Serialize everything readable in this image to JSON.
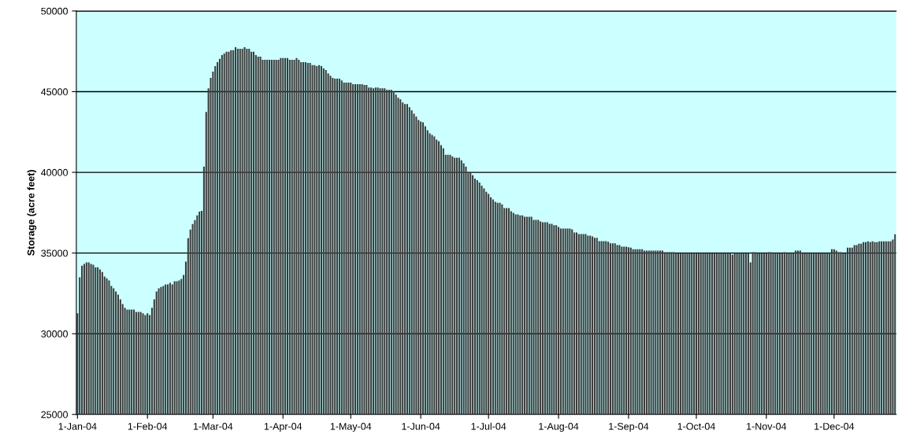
{
  "chart_data": {
    "type": "bar",
    "ylabel": "Storage (acre feet)",
    "color": "#3c3c3c",
    "ylim": [
      25000,
      50000
    ],
    "yticks": [
      25000,
      30000,
      35000,
      40000,
      45000,
      50000
    ],
    "grid": "y",
    "categories": [
      "1-Jan-04",
      null,
      null,
      null,
      null,
      null,
      null,
      null,
      null,
      null,
      null,
      null,
      null,
      null,
      null,
      null,
      null,
      null,
      null,
      null,
      null,
      null,
      null,
      null,
      null,
      null,
      null,
      null,
      null,
      null,
      null,
      "1-Feb-04",
      null,
      null,
      null,
      null,
      null,
      null,
      null,
      null,
      null,
      null,
      null,
      null,
      null,
      null,
      null,
      null,
      null,
      null,
      null,
      null,
      null,
      null,
      null,
      null,
      null,
      null,
      null,
      null,
      "1-Mar-04",
      null,
      null,
      null,
      null,
      null,
      null,
      null,
      null,
      null,
      null,
      null,
      null,
      null,
      null,
      null,
      null,
      null,
      null,
      null,
      null,
      null,
      null,
      null,
      null,
      null,
      null,
      null,
      null,
      null,
      null,
      "1-Apr-04",
      null,
      null,
      null,
      null,
      null,
      null,
      null,
      null,
      null,
      null,
      null,
      null,
      null,
      null,
      null,
      null,
      null,
      null,
      null,
      null,
      null,
      null,
      null,
      null,
      null,
      null,
      null,
      null,
      null,
      "1-May-04",
      null,
      null,
      null,
      null,
      null,
      null,
      null,
      null,
      null,
      null,
      null,
      null,
      null,
      null,
      null,
      null,
      null,
      null,
      null,
      null,
      null,
      null,
      null,
      null,
      null,
      null,
      null,
      null,
      null,
      null,
      "1-Jun-04",
      null,
      null,
      null,
      null,
      null,
      null,
      null,
      null,
      null,
      null,
      null,
      null,
      null,
      null,
      null,
      null,
      null,
      null,
      null,
      null,
      null,
      null,
      null,
      null,
      null,
      null,
      null,
      null,
      null,
      "1-Jul-04",
      null,
      null,
      null,
      null,
      null,
      null,
      null,
      null,
      null,
      null,
      null,
      null,
      null,
      null,
      null,
      null,
      null,
      null,
      null,
      null,
      null,
      null,
      null,
      null,
      null,
      null,
      null,
      null,
      null,
      null,
      "1-Aug-04",
      null,
      null,
      null,
      null,
      null,
      null,
      null,
      null,
      null,
      null,
      null,
      null,
      null,
      null,
      null,
      null,
      null,
      null,
      null,
      null,
      null,
      null,
      null,
      null,
      null,
      null,
      null,
      null,
      null,
      null,
      "1-Sep-04",
      null,
      null,
      null,
      null,
      null,
      null,
      null,
      null,
      null,
      null,
      null,
      null,
      null,
      null,
      null,
      null,
      null,
      null,
      null,
      null,
      null,
      null,
      null,
      null,
      null,
      null,
      null,
      null,
      null,
      "1-Oct-04",
      null,
      null,
      null,
      null,
      null,
      null,
      null,
      null,
      null,
      null,
      null,
      null,
      null,
      null,
      null,
      null,
      null,
      null,
      null,
      null,
      null,
      null,
      null,
      null,
      null,
      null,
      null,
      null,
      null,
      null,
      "1-Nov-04",
      null,
      null,
      null,
      null,
      null,
      null,
      null,
      null,
      null,
      null,
      null,
      null,
      null,
      null,
      null,
      null,
      null,
      null,
      null,
      null,
      null,
      null,
      null,
      null,
      null,
      null,
      null,
      null,
      null,
      "1-Dec-04",
      null,
      null,
      null,
      null,
      null,
      null,
      null,
      null,
      null,
      null,
      null,
      null,
      null,
      null,
      null,
      null,
      null,
      null,
      null,
      null,
      null,
      null,
      null,
      null,
      null,
      null,
      null
    ],
    "values": [
      31260,
      33500,
      34220,
      34320,
      34420,
      34420,
      34320,
      34270,
      34120,
      34120,
      33980,
      33830,
      33540,
      33440,
      33300,
      32960,
      32810,
      32620,
      32420,
      32130,
      31840,
      31600,
      31500,
      31500,
      31500,
      31500,
      31350,
      31350,
      31350,
      31260,
      31160,
      31260,
      31160,
      31600,
      32130,
      32620,
      32810,
      32900,
      32960,
      33060,
      33060,
      33150,
      33060,
      33250,
      33250,
      33300,
      33400,
      33640,
      34470,
      35920,
      36460,
      36800,
      37040,
      37330,
      37570,
      37620,
      40360,
      43740,
      45210,
      45850,
      46240,
      46590,
      46830,
      47030,
      47270,
      47370,
      47470,
      47470,
      47570,
      47570,
      47760,
      47660,
      47660,
      47660,
      47760,
      47660,
      47660,
      47470,
      47470,
      47270,
      47170,
      47170,
      46980,
      46980,
      46980,
      46980,
      46980,
      46980,
      46980,
      46980,
      47080,
      47080,
      47080,
      47080,
      46980,
      46980,
      46980,
      47080,
      46980,
      46830,
      46830,
      46830,
      46780,
      46780,
      46640,
      46640,
      46590,
      46640,
      46590,
      46440,
      46340,
      46140,
      45990,
      45850,
      45800,
      45800,
      45800,
      45700,
      45560,
      45560,
      45560,
      45560,
      45460,
      45460,
      45460,
      45460,
      45460,
      45410,
      45410,
      45260,
      45260,
      45210,
      45260,
      45260,
      45210,
      45210,
      45210,
      45110,
      45110,
      45110,
      45020,
      44820,
      44620,
      44530,
      44330,
      44230,
      44230,
      44040,
      43840,
      43640,
      43450,
      43250,
      43150,
      43100,
      42860,
      42610,
      42420,
      42320,
      42220,
      42030,
      41930,
      41680,
      41490,
      41090,
      41090,
      41090,
      40990,
      40900,
      40900,
      40900,
      40750,
      40560,
      40360,
      40020,
      40020,
      39820,
      39610,
      39510,
      39370,
      39170,
      39000,
      38800,
      38660,
      38460,
      38320,
      38170,
      38120,
      38120,
      38020,
      37780,
      37780,
      37780,
      37590,
      37490,
      37390,
      37390,
      37340,
      37340,
      37250,
      37250,
      37250,
      37250,
      37050,
      37050,
      37050,
      36960,
      36910,
      36910,
      36910,
      36810,
      36810,
      36720,
      36720,
      36620,
      36520,
      36520,
      36520,
      36520,
      36520,
      36470,
      36280,
      36280,
      36180,
      36180,
      36180,
      36180,
      36080,
      36080,
      36030,
      35940,
      35940,
      35740,
      35740,
      35740,
      35740,
      35700,
      35600,
      35600,
      35600,
      35500,
      35500,
      35400,
      35400,
      35400,
      35360,
      35340,
      35240,
      35240,
      35240,
      35240,
      35240,
      35150,
      35150,
      35150,
      35150,
      35150,
      35150,
      35150,
      35150,
      35150,
      35050,
      35050,
      35050,
      35050,
      35050,
      35000,
      35000,
      35000,
      35000,
      35000,
      35000,
      35000,
      35000,
      35000,
      35000,
      35000,
      35000,
      35000,
      35000,
      35000,
      35000,
      35000,
      35000,
      35000,
      35000,
      35000,
      35000,
      35000,
      35000,
      35000,
      34900,
      35000,
      35000,
      35000,
      35000,
      35000,
      35000,
      35000,
      34420,
      35050,
      35050,
      35000,
      35000,
      35000,
      35000,
      35000,
      35050,
      35050,
      35000,
      35000,
      35000,
      35000,
      35000,
      35050,
      35000,
      35000,
      35000,
      35000,
      35150,
      35150,
      35150,
      35000,
      35000,
      35000,
      35000,
      35000,
      35000,
      35000,
      35000,
      35000,
      35000,
      35000,
      35000,
      35000,
      35240,
      35240,
      35150,
      35050,
      35050,
      35000,
      35000,
      35340,
      35340,
      35340,
      35490,
      35490,
      35580,
      35580,
      35680,
      35680,
      35730,
      35680,
      35730,
      35680,
      35680,
      35730,
      35730,
      35730,
      35730,
      35730,
      35730,
      35830,
      36170
    ]
  }
}
